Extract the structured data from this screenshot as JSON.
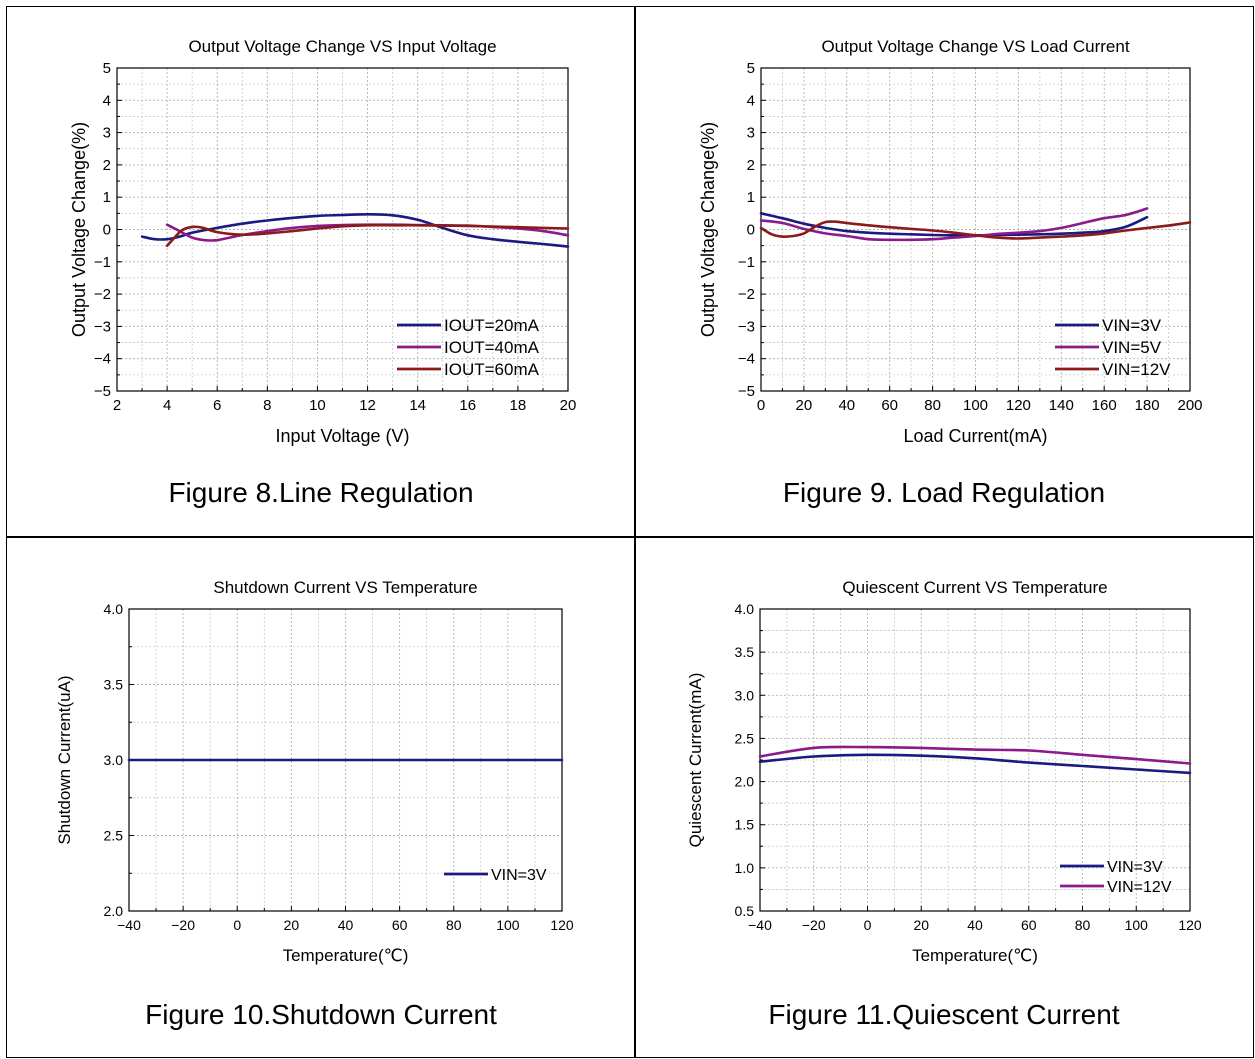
{
  "chart_data": [
    {
      "type": "line",
      "title": "Output Voltage Change VS Input Voltage",
      "xlabel": "Input Voltage (V)",
      "ylabel": "Output Voltage Change(%)",
      "caption": "Figure 8.Line Regulation",
      "xlim": [
        2,
        20
      ],
      "ylim": [
        -5,
        5
      ],
      "xticks": [
        2,
        4,
        6,
        8,
        10,
        12,
        14,
        16,
        18,
        20
      ],
      "xtick_labels": [
        "2",
        "4",
        "6",
        "8",
        "10",
        "12",
        "14",
        "16",
        "18",
        "20"
      ],
      "yticks": [
        -5,
        -4,
        -3,
        -2,
        -1,
        0,
        1,
        2,
        3,
        4,
        5
      ],
      "ytick_labels": [
        "−5",
        "−4",
        "−3",
        "−2",
        "−1",
        "0",
        "1",
        "2",
        "3",
        "4",
        "5"
      ],
      "grid": true,
      "legend_position": "bottom-right",
      "series": [
        {
          "name": "IOUT=20mA",
          "color": "#1a1a80",
          "x": [
            3.0,
            3.5,
            4.0,
            4.5,
            5,
            6,
            7,
            8,
            9,
            10,
            11,
            12,
            13,
            14,
            15,
            16,
            17,
            18,
            19,
            20
          ],
          "y": [
            -0.22,
            -0.3,
            -0.3,
            -0.22,
            -0.1,
            0.05,
            0.18,
            0.28,
            0.36,
            0.42,
            0.45,
            0.47,
            0.44,
            0.3,
            0.05,
            -0.18,
            -0.3,
            -0.38,
            -0.45,
            -0.53
          ]
        },
        {
          "name": "IOUT=40mA",
          "color": "#8b1a8b",
          "x": [
            4.0,
            4.5,
            5,
            5.5,
            6,
            6.5,
            7,
            8,
            9,
            10,
            11,
            12,
            13,
            14,
            15,
            16,
            17,
            18,
            19,
            20
          ],
          "y": [
            0.15,
            -0.05,
            -0.25,
            -0.33,
            -0.33,
            -0.25,
            -0.17,
            -0.05,
            0.05,
            0.11,
            0.14,
            0.15,
            0.15,
            0.14,
            0.13,
            0.12,
            0.08,
            0.03,
            -0.05,
            -0.18
          ]
        },
        {
          "name": "IOUT=60mA",
          "color": "#8b1a1a",
          "x": [
            4.0,
            4.3,
            4.6,
            5.0,
            5.4,
            6,
            7,
            8,
            9,
            10,
            11,
            12,
            13,
            14,
            15,
            16,
            17,
            18,
            19,
            20
          ],
          "y": [
            -0.5,
            -0.25,
            -0.02,
            0.08,
            0.06,
            -0.08,
            -0.16,
            -0.12,
            -0.05,
            0.03,
            0.1,
            0.13,
            0.13,
            0.13,
            0.12,
            0.11,
            0.09,
            0.07,
            0.05,
            0.03
          ]
        }
      ]
    },
    {
      "type": "line",
      "title": "Output Voltage Change VS Load Current",
      "xlabel": "Load Current(mA)",
      "ylabel": "Output Voltage Change(%)",
      "caption": "Figure 9. Load Regulation",
      "xlim": [
        0,
        200
      ],
      "ylim": [
        -5,
        5
      ],
      "xticks": [
        0,
        20,
        40,
        60,
        80,
        100,
        120,
        140,
        160,
        180,
        200
      ],
      "xtick_labels": [
        "0",
        "20",
        "40",
        "60",
        "80",
        "100",
        "120",
        "140",
        "160",
        "180",
        "200"
      ],
      "yticks": [
        -5,
        -4,
        -3,
        -2,
        -1,
        0,
        1,
        2,
        3,
        4,
        5
      ],
      "ytick_labels": [
        "−5",
        "−4",
        "−3",
        "−2",
        "−1",
        "0",
        "1",
        "2",
        "3",
        "4",
        "5"
      ],
      "grid": true,
      "legend_position": "bottom-right",
      "series": [
        {
          "name": "VIN=3V",
          "color": "#1a1a80",
          "x": [
            0,
            10,
            20,
            30,
            40,
            50,
            60,
            70,
            80,
            90,
            100,
            110,
            120,
            130,
            140,
            150,
            160,
            170,
            180
          ],
          "y": [
            0.5,
            0.35,
            0.18,
            0.05,
            -0.05,
            -0.1,
            -0.13,
            -0.15,
            -0.17,
            -0.18,
            -0.18,
            -0.17,
            -0.16,
            -0.15,
            -0.13,
            -0.1,
            -0.05,
            0.08,
            0.38
          ]
        },
        {
          "name": "VIN=5V",
          "color": "#8b1a8b",
          "x": [
            0,
            10,
            20,
            30,
            40,
            50,
            60,
            70,
            80,
            90,
            100,
            110,
            120,
            130,
            140,
            150,
            160,
            170,
            180
          ],
          "y": [
            0.28,
            0.2,
            0.02,
            -0.12,
            -0.2,
            -0.3,
            -0.32,
            -0.32,
            -0.3,
            -0.25,
            -0.2,
            -0.14,
            -0.1,
            -0.05,
            0.05,
            0.2,
            0.35,
            0.45,
            0.65
          ]
        },
        {
          "name": "VIN=12V",
          "color": "#8b1a1a",
          "x": [
            0,
            5,
            10,
            15,
            20,
            25,
            30,
            35,
            40,
            50,
            60,
            70,
            80,
            90,
            100,
            110,
            120,
            130,
            140,
            150,
            160,
            170,
            180,
            190,
            200
          ],
          "y": [
            0.05,
            -0.15,
            -0.22,
            -0.2,
            -0.12,
            0.08,
            0.23,
            0.24,
            0.2,
            0.13,
            0.07,
            0.02,
            -0.03,
            -0.1,
            -0.18,
            -0.25,
            -0.28,
            -0.25,
            -0.22,
            -0.18,
            -0.12,
            -0.03,
            0.05,
            0.12,
            0.22
          ]
        }
      ]
    },
    {
      "type": "line",
      "title": "Shutdown Current VS Temperature",
      "xlabel": "Temperature(℃)",
      "ylabel": "Shutdown Current(uA)",
      "caption": "Figure 10.Shutdown Current",
      "xlim": [
        -40,
        120
      ],
      "ylim": [
        2.0,
        4.0
      ],
      "xticks": [
        -40,
        -20,
        0,
        20,
        40,
        60,
        80,
        100,
        120
      ],
      "xtick_labels": [
        "−40",
        "−20",
        "0",
        "20",
        "40",
        "60",
        "80",
        "100",
        "120"
      ],
      "yticks": [
        2.0,
        2.5,
        3.0,
        3.5,
        4.0
      ],
      "ytick_labels": [
        "2.0",
        "2.5",
        "3.0",
        "3.5",
        "4.0"
      ],
      "grid": true,
      "legend_position": "bottom-right",
      "series": [
        {
          "name": "VIN=3V",
          "color": "#1a1a80",
          "x": [
            -40,
            -20,
            0,
            20,
            40,
            60,
            80,
            100,
            120
          ],
          "y": [
            3.0,
            3.0,
            3.0,
            3.0,
            3.0,
            3.0,
            3.0,
            3.0,
            3.0
          ]
        }
      ]
    },
    {
      "type": "line",
      "title": "Quiescent Current VS Temperature",
      "xlabel": "Temperature(℃)",
      "ylabel": "Quiescent Current(mA)",
      "caption": "Figure 11.Quiescent Current",
      "xlim": [
        -40,
        120
      ],
      "ylim": [
        0.5,
        4.0
      ],
      "xticks": [
        -40,
        -20,
        0,
        20,
        40,
        60,
        80,
        100,
        120
      ],
      "xtick_labels": [
        "−40",
        "−20",
        "0",
        "20",
        "40",
        "60",
        "80",
        "100",
        "120"
      ],
      "yticks": [
        0.5,
        1.0,
        1.5,
        2.0,
        2.5,
        3.0,
        3.5,
        4.0
      ],
      "ytick_labels": [
        "0.5",
        "1.0",
        "1.5",
        "2.0",
        "2.5",
        "3.0",
        "3.5",
        "4.0"
      ],
      "grid": true,
      "legend_position": "bottom-right",
      "series": [
        {
          "name": "VIN=3V",
          "color": "#1a1a80",
          "x": [
            -40,
            -20,
            0,
            20,
            40,
            60,
            80,
            100,
            120
          ],
          "y": [
            2.23,
            2.29,
            2.31,
            2.3,
            2.27,
            2.22,
            2.18,
            2.14,
            2.1
          ]
        },
        {
          "name": "VIN=12V",
          "color": "#8b1a8b",
          "x": [
            -40,
            -20,
            0,
            20,
            40,
            60,
            80,
            100,
            120
          ],
          "y": [
            2.29,
            2.39,
            2.4,
            2.39,
            2.37,
            2.36,
            2.31,
            2.26,
            2.21
          ]
        }
      ]
    }
  ]
}
